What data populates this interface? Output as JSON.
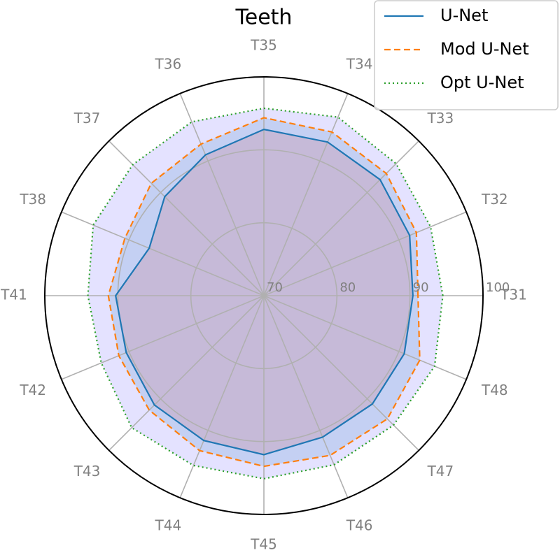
{
  "chart_data": {
    "type": "radar",
    "title": "Teeth",
    "categories": [
      "T31",
      "T32",
      "T33",
      "T34",
      "T35",
      "T36",
      "T37",
      "T38",
      "T41",
      "T42",
      "T43",
      "T44",
      "T45",
      "T46",
      "T47",
      "T48"
    ],
    "series": [
      {
        "name": "U-Net",
        "color": "#1f77b4",
        "dash": "solid",
        "fill": "rgba(214,39,40,0.13)",
        "values": [
          90.4,
          91.6,
          92.5,
          92.8,
          92.8,
          90.9,
          89.2,
          87.0,
          90.3,
          90.4,
          91.2,
          91.5,
          91.8,
          91.0,
          91.0,
          90.8
        ]
      },
      {
        "name": "Mod U-Net",
        "color": "#ff7f0e",
        "dash": "dashed",
        "fill": "rgba(31,119,180,0.16)",
        "values": [
          91.1,
          92.6,
          93.7,
          94.3,
          94.4,
          92.5,
          91.8,
          90.6,
          91.3,
          91.5,
          92.2,
          93.0,
          93.4,
          93.7,
          93.9,
          93.1
        ]
      },
      {
        "name": "Opt U-Net",
        "color": "#2ca02c",
        "dash": "dotted",
        "fill": "rgba(120,110,255,0.2)",
        "values": [
          94.5,
          94.7,
          95.6,
          96.5,
          95.7,
          95.8,
          95.4,
          95.3,
          94.1,
          94.1,
          95.6,
          95.2,
          95.1,
          95.1,
          95.1,
          95.3
        ]
      }
    ],
    "rlim": [
      70,
      100
    ],
    "rticks": [
      70,
      80,
      90,
      100
    ],
    "grid": true,
    "legend": "upper right"
  }
}
